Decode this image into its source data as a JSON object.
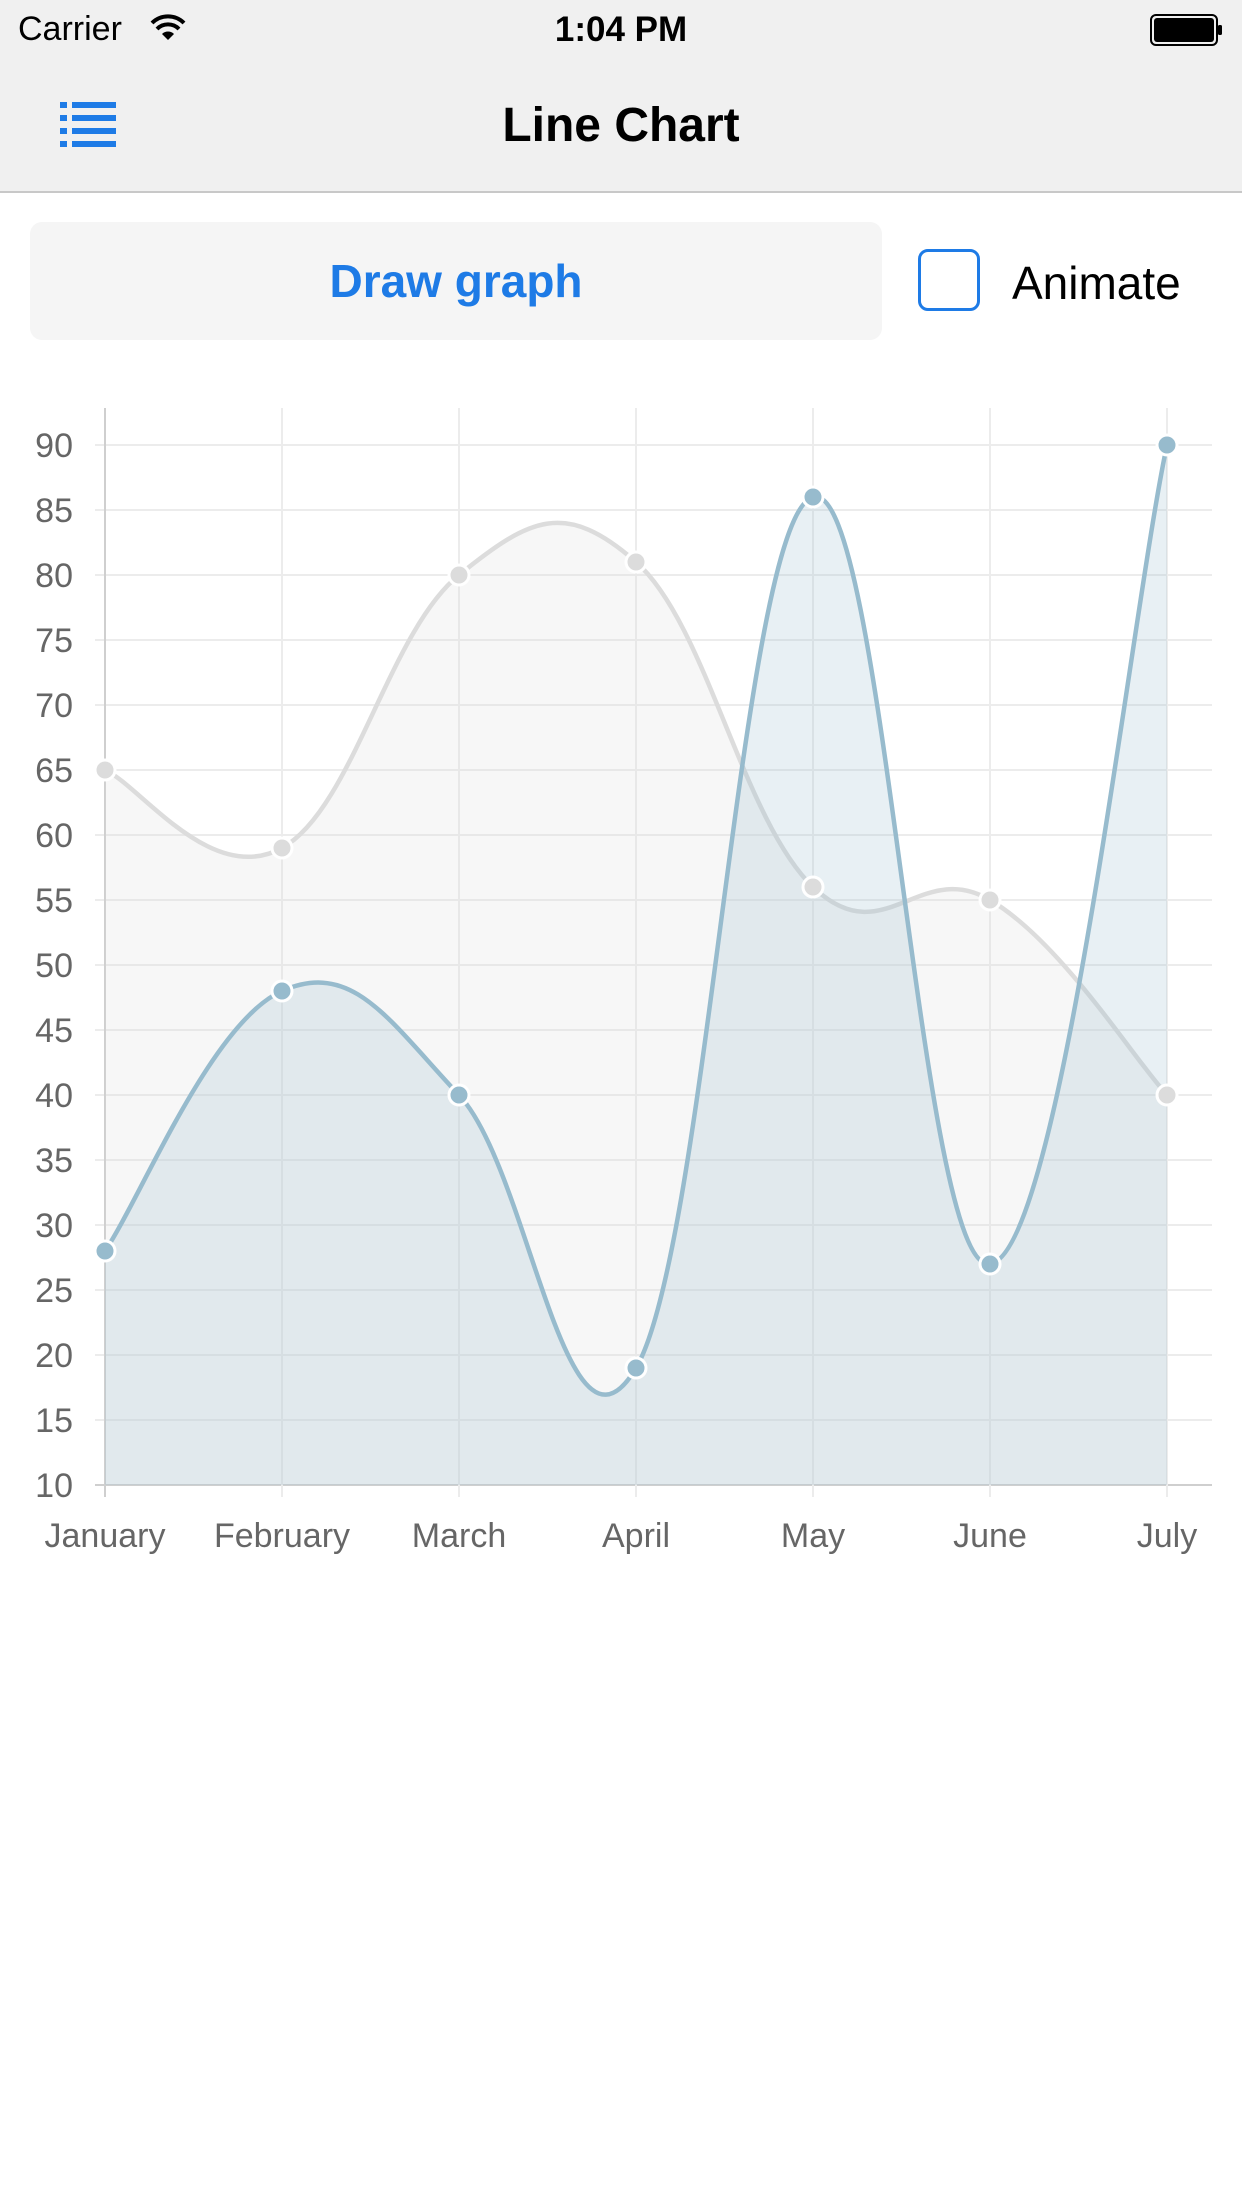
{
  "status_bar": {
    "carrier": "Carrier",
    "time": "1:04 PM"
  },
  "nav": {
    "title": "Line Chart",
    "menu_icon": "list-icon"
  },
  "controls": {
    "draw_label": "Draw graph",
    "animate_label": "Animate",
    "animate_checked": false
  },
  "colors": {
    "accent": "#1e7be6",
    "series_1": "#dcdcdc",
    "series_2": "#97bbcd"
  },
  "chart_data": {
    "type": "line",
    "title": "",
    "xlabel": "",
    "ylabel": "",
    "categories": [
      "January",
      "February",
      "March",
      "April",
      "May",
      "June",
      "July"
    ],
    "ylim": [
      10,
      90
    ],
    "yticks": [
      10,
      15,
      20,
      25,
      30,
      35,
      40,
      45,
      50,
      55,
      60,
      65,
      70,
      75,
      80,
      85,
      90
    ],
    "grid": true,
    "series": [
      {
        "values": [
          65,
          59,
          80,
          81,
          56,
          55,
          40
        ],
        "color": "#dcdcdc"
      },
      {
        "values": [
          28,
          48,
          40,
          19,
          86,
          27,
          90
        ],
        "color": "#97bbcd"
      }
    ]
  }
}
